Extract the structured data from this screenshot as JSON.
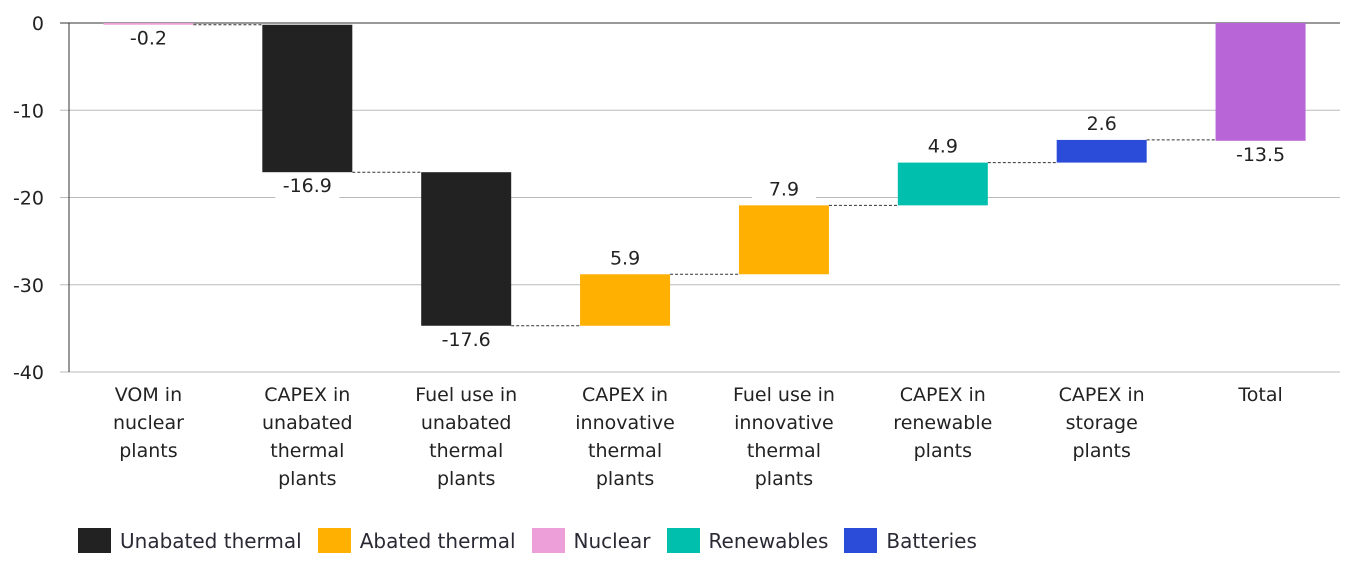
{
  "chart_data": {
    "type": "waterfall",
    "title": "",
    "xlabel": "",
    "ylabel": "",
    "ylim": [
      -40,
      0
    ],
    "yticks": [
      0,
      -10,
      -20,
      -30,
      -40
    ],
    "grid": true,
    "legend_position": "bottom",
    "categories": [
      [
        "VOM in",
        "nuclear",
        "plants"
      ],
      [
        "CAPEX in",
        "unabated",
        "thermal",
        "plants"
      ],
      [
        "Fuel use in",
        "unabated",
        "thermal",
        "plants"
      ],
      [
        "CAPEX in",
        "innovative",
        "thermal",
        "plants"
      ],
      [
        "Fuel use in",
        "innovative",
        "thermal",
        "plants"
      ],
      [
        "CAPEX in",
        "renewable",
        "plants"
      ],
      [
        "CAPEX in",
        "storage",
        "plants"
      ],
      [
        "Total"
      ]
    ],
    "values": [
      -0.2,
      -16.9,
      -17.6,
      5.9,
      7.9,
      4.9,
      2.6,
      -13.5
    ],
    "labels": [
      "-0.2",
      "-16.9",
      "-17.6",
      "5.9",
      "7.9",
      "4.9",
      "2.6",
      "-13.5"
    ],
    "series_of_bar": [
      "Nuclear",
      "Unabated thermal",
      "Unabated thermal",
      "Abated thermal",
      "Abated thermal",
      "Renewables",
      "Batteries",
      "Total"
    ],
    "is_total": [
      false,
      false,
      false,
      false,
      false,
      false,
      false,
      true
    ],
    "legend": [
      {
        "name": "Unabated thermal",
        "color": "#222222"
      },
      {
        "name": "Abated thermal",
        "color": "#ffb000"
      },
      {
        "name": "Nuclear",
        "color": "#ed9fd9"
      },
      {
        "name": "Renewables",
        "color": "#00bfad"
      },
      {
        "name": "Batteries",
        "color": "#2b4cd8"
      }
    ],
    "total_color": "#b865d8"
  }
}
